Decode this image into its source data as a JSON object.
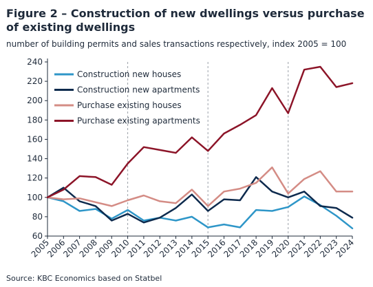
{
  "chart_data": {
    "type": "line",
    "title": "Figure 2 – Construction of new dwellings versus purchase of existing dwellings",
    "subtitle": "number of building permits and sales transactions respectively, index 2005 = 100",
    "source": "Source: KBC Economics based on Statbel",
    "x": [
      "2005",
      "2006",
      "2007",
      "2008",
      "2009",
      "2010",
      "2011",
      "2012",
      "2013",
      "2014",
      "2015",
      "2016",
      "2017",
      "2018",
      "2019",
      "2020",
      "2021",
      "2022",
      "2023",
      "2024"
    ],
    "ylim": [
      60,
      240
    ],
    "yticks": [
      60,
      80,
      100,
      120,
      140,
      160,
      180,
      200,
      220,
      240
    ],
    "grid": "none",
    "vertical_dashed_lines_at": [
      "2010",
      "2015",
      "2020"
    ],
    "legend_position": "top-left",
    "series": [
      {
        "name": "Construction new houses",
        "color": "#2e96c8",
        "values": [
          100,
          96,
          86,
          88,
          78,
          87,
          76,
          79,
          76,
          80,
          69,
          72,
          69,
          87,
          86,
          90,
          101,
          92,
          81,
          68
        ]
      },
      {
        "name": "Construction new apartments",
        "color": "#0d2a4d",
        "values": [
          100,
          110,
          96,
          91,
          76,
          83,
          74,
          79,
          89,
          103,
          86,
          98,
          97,
          121,
          106,
          100,
          106,
          91,
          89,
          79
        ]
      },
      {
        "name": "Purchase existing houses",
        "color": "#d48c85",
        "values": [
          100,
          98,
          99,
          95,
          91,
          97,
          102,
          96,
          94,
          108,
          91,
          106,
          109,
          115,
          131,
          104,
          119,
          127,
          106,
          106
        ]
      },
      {
        "name": "Purchase existing apartments",
        "color": "#8c1428",
        "values": [
          100,
          108,
          122,
          121,
          113,
          135,
          152,
          149,
          146,
          162,
          148,
          166,
          175,
          185,
          213,
          187,
          232,
          235,
          214,
          218
        ]
      }
    ]
  }
}
